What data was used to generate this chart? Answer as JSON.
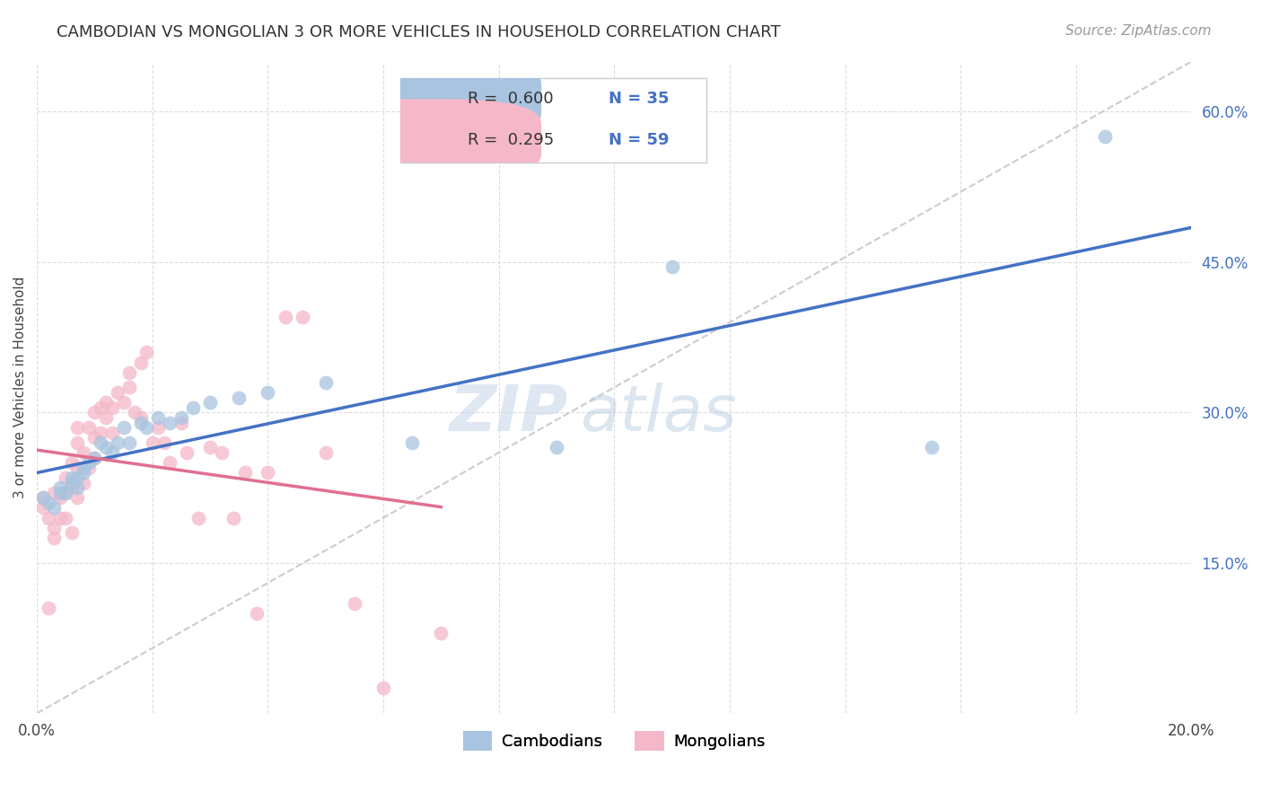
{
  "title": "CAMBODIAN VS MONGOLIAN 3 OR MORE VEHICLES IN HOUSEHOLD CORRELATION CHART",
  "source": "Source: ZipAtlas.com",
  "ylabel": "3 or more Vehicles in Household",
  "xmin": 0.0,
  "xmax": 0.2,
  "ymin": 0.0,
  "ymax": 0.65,
  "xticks": [
    0.0,
    0.02,
    0.04,
    0.06,
    0.08,
    0.1,
    0.12,
    0.14,
    0.16,
    0.18,
    0.2
  ],
  "yticks": [
    0.0,
    0.15,
    0.3,
    0.45,
    0.6
  ],
  "cambodian_color": "#a8c4e0",
  "mongolian_color": "#f4b8c8",
  "cambodian_line_color": "#4472c4",
  "mongolian_line_color": "#e07090",
  "legend_R_cambodian": "0.600",
  "legend_N_cambodian": "35",
  "legend_R_mongolian": "0.295",
  "legend_N_mongolian": "59",
  "watermark_zip": "ZIP",
  "watermark_atlas": "atlas",
  "ref_line_color": "#cccccc",
  "ytick_color": "#4472c4",
  "cambodian_x": [
    0.001,
    0.002,
    0.003,
    0.004,
    0.004,
    0.005,
    0.006,
    0.006,
    0.007,
    0.007,
    0.008,
    0.008,
    0.009,
    0.01,
    0.011,
    0.012,
    0.013,
    0.014,
    0.015,
    0.016,
    0.018,
    0.019,
    0.021,
    0.023,
    0.025,
    0.027,
    0.03,
    0.035,
    0.04,
    0.05,
    0.065,
    0.09,
    0.11,
    0.155,
    0.185
  ],
  "cambodian_y": [
    0.215,
    0.21,
    0.205,
    0.22,
    0.225,
    0.22,
    0.23,
    0.235,
    0.225,
    0.235,
    0.24,
    0.245,
    0.25,
    0.255,
    0.27,
    0.265,
    0.26,
    0.27,
    0.285,
    0.27,
    0.29,
    0.285,
    0.295,
    0.29,
    0.295,
    0.305,
    0.31,
    0.315,
    0.32,
    0.33,
    0.27,
    0.265,
    0.445,
    0.265,
    0.575
  ],
  "mongolian_x": [
    0.001,
    0.001,
    0.002,
    0.002,
    0.003,
    0.003,
    0.003,
    0.004,
    0.004,
    0.005,
    0.005,
    0.005,
    0.006,
    0.006,
    0.006,
    0.007,
    0.007,
    0.007,
    0.007,
    0.008,
    0.008,
    0.009,
    0.009,
    0.01,
    0.01,
    0.01,
    0.011,
    0.011,
    0.012,
    0.012,
    0.013,
    0.013,
    0.014,
    0.015,
    0.016,
    0.016,
    0.017,
    0.018,
    0.018,
    0.019,
    0.02,
    0.021,
    0.022,
    0.023,
    0.025,
    0.026,
    0.028,
    0.03,
    0.032,
    0.034,
    0.036,
    0.038,
    0.04,
    0.043,
    0.046,
    0.05,
    0.055,
    0.06,
    0.07
  ],
  "mongolian_y": [
    0.205,
    0.215,
    0.105,
    0.195,
    0.175,
    0.185,
    0.22,
    0.195,
    0.215,
    0.195,
    0.22,
    0.235,
    0.18,
    0.225,
    0.25,
    0.215,
    0.245,
    0.27,
    0.285,
    0.23,
    0.26,
    0.245,
    0.285,
    0.255,
    0.275,
    0.3,
    0.28,
    0.305,
    0.295,
    0.31,
    0.28,
    0.305,
    0.32,
    0.31,
    0.325,
    0.34,
    0.3,
    0.295,
    0.35,
    0.36,
    0.27,
    0.285,
    0.27,
    0.25,
    0.29,
    0.26,
    0.195,
    0.265,
    0.26,
    0.195,
    0.24,
    0.1,
    0.24,
    0.395,
    0.395,
    0.26,
    0.11,
    0.025,
    0.08
  ]
}
